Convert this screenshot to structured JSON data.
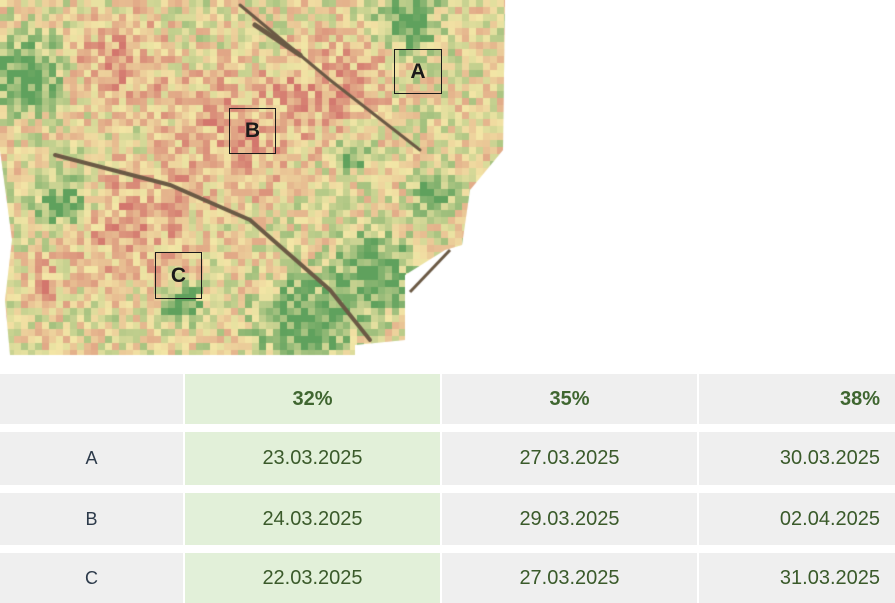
{
  "map": {
    "zones": [
      {
        "id": "a",
        "label": "A"
      },
      {
        "id": "b",
        "label": "B"
      },
      {
        "id": "c",
        "label": "C"
      }
    ]
  },
  "table": {
    "headers": [
      "",
      "32%",
      "35%",
      "38%"
    ],
    "rows": [
      {
        "zone": "A",
        "dates": [
          "23.03.2025",
          "27.03.2025",
          "30.03.2025"
        ]
      },
      {
        "zone": "B",
        "dates": [
          "24.03.2025",
          "29.03.2025",
          "02.04.2025"
        ]
      },
      {
        "zone": "C",
        "dates": [
          "22.03.2025",
          "27.03.2025",
          "31.03.2025"
        ]
      }
    ]
  },
  "colors": {
    "red": "#c8505a",
    "yellow": "#f3e6a6",
    "green": "#2e8a44",
    "highlight_column": "#e2f0d9",
    "row_bg": "#efefef",
    "header_text": "#3f6630"
  }
}
